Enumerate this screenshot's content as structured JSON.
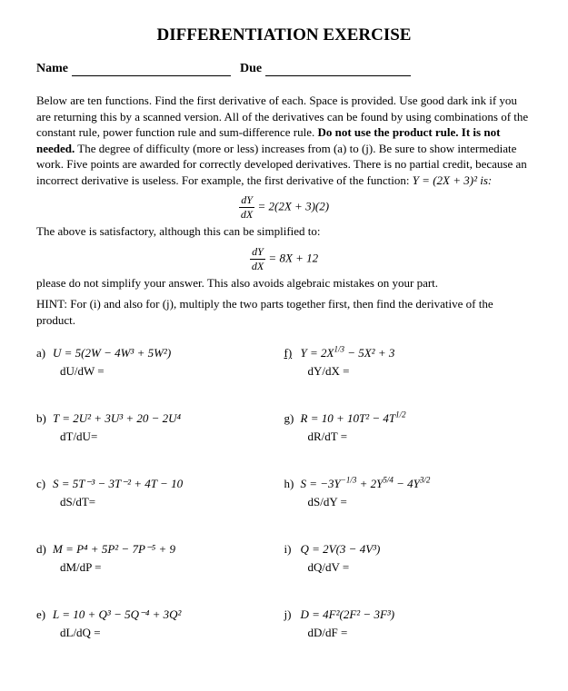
{
  "title": "DIFFERENTIATION EXERCISE",
  "name_label": "Name",
  "due_label": "Due",
  "instr1": "Below are ten functions.  Find the first derivative of each.  Space is provided.  Use good dark ink if you are returning this by a scanned version.  All of the derivatives can be found by using combinations of the constant rule, power function rule and sum-difference rule.  ",
  "instr_bold1": "Do not use the product rule.  It is not needed.",
  "instr2": "  The degree of difficulty (more or less) increases from (a) to (j).  Be sure to show intermediate work.  Five points are awarded for correctly developed derivatives.  There is no partial credit, because an incorrect derivative is useless.   For example, the first derivative of the function:      ",
  "example_fn": "Y = (2X + 3)²   is:",
  "example_deriv": "= 2(2X + 3)(2)",
  "instr3": "The above is satisfactory, although this can be simplified to:",
  "example_simpl": "= 8X + 12",
  "instr4": "please do not simplify your answer. This also  avoids algebraic mistakes on your part.",
  "hint": "HINT: For (i) and also for (j), multiply the two  parts together first, then find the derivative of the product.",
  "problems": [
    {
      "left": {
        "letter": "a)",
        "eq": "U = 5(2W − 4W³ + 5W²)",
        "deriv": "dU/dW ="
      },
      "right": {
        "letter": "f)",
        "eq": "Y = 2X^{1/3} − 5X² + 3",
        "deriv": "dY/dX =",
        "under": true
      }
    },
    {
      "left": {
        "letter": "b)",
        "eq": "T = 2U² + 3U³ + 20 − 2U⁴",
        "deriv": "dT/dU="
      },
      "right": {
        "letter": "g)",
        "eq": "R = 10 + 10T² − 4T^{1/2}",
        "deriv": "dR/dT ="
      }
    },
    {
      "left": {
        "letter": "c)",
        "eq": "S = 5T⁻³ − 3T⁻² + 4T − 10",
        "deriv": "dS/dT="
      },
      "right": {
        "letter": "h)",
        "eq": "S = −3Y^{−1/3} + 2Y^{5/4} − 4Y^{3/2}",
        "deriv": "dS/dY ="
      }
    },
    {
      "left": {
        "letter": "d)",
        "eq": "M = P⁴ + 5P² − 7P⁻⁵ + 9",
        "deriv": "dM/dP ="
      },
      "right": {
        "letter": "i)",
        "eq": "Q = 2V(3 − 4V³)",
        "deriv": "dQ/dV ="
      }
    },
    {
      "left": {
        "letter": "e)",
        "eq": "L = 10 + Q³ − 5Q⁻⁴ + 3Q²",
        "deriv": "dL/dQ ="
      },
      "right": {
        "letter": "j)",
        "eq": "D = 4F²(2F² − 3F³)",
        "deriv": "dD/dF ="
      }
    }
  ]
}
